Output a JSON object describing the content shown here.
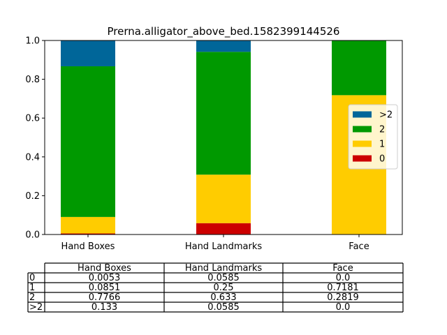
{
  "chart_data": {
    "type": "bar",
    "stacked": true,
    "title": "Prerna.alligator_above_bed.1582399144526",
    "categories": [
      "Hand Boxes",
      "Hand Landmarks",
      "Face"
    ],
    "ylim": [
      0,
      1.0
    ],
    "yticks": [
      "0.0",
      "0.2",
      "0.4",
      "0.6",
      "0.8",
      "1.0"
    ],
    "grid": false,
    "legend_position": "center-right",
    "series": [
      {
        "name": "0",
        "color": "#cc0000",
        "values": [
          0.0053,
          0.0585,
          0.0
        ]
      },
      {
        "name": "1",
        "color": "#ffcc00",
        "values": [
          0.0851,
          0.25,
          0.7181
        ]
      },
      {
        "name": "2",
        "color": "#009900",
        "values": [
          0.7766,
          0.633,
          0.2819
        ]
      },
      {
        "name": ">2",
        "color": "#006699",
        "values": [
          0.133,
          0.0585,
          0.0
        ]
      }
    ],
    "legend_order": [
      ">2",
      "2",
      "1",
      "0"
    ]
  },
  "table": {
    "columns": [
      "Hand Boxes",
      "Hand Landmarks",
      "Face"
    ],
    "rows": [
      {
        "label": "0",
        "cells": [
          "0.0053",
          "0.0585",
          "0.0"
        ]
      },
      {
        "label": "1",
        "cells": [
          "0.0851",
          "0.25",
          "0.7181"
        ]
      },
      {
        "label": "2",
        "cells": [
          "0.7766",
          "0.633",
          "0.2819"
        ]
      },
      {
        "label": ">2",
        "cells": [
          "0.133",
          "0.0585",
          "0.0"
        ]
      }
    ]
  }
}
